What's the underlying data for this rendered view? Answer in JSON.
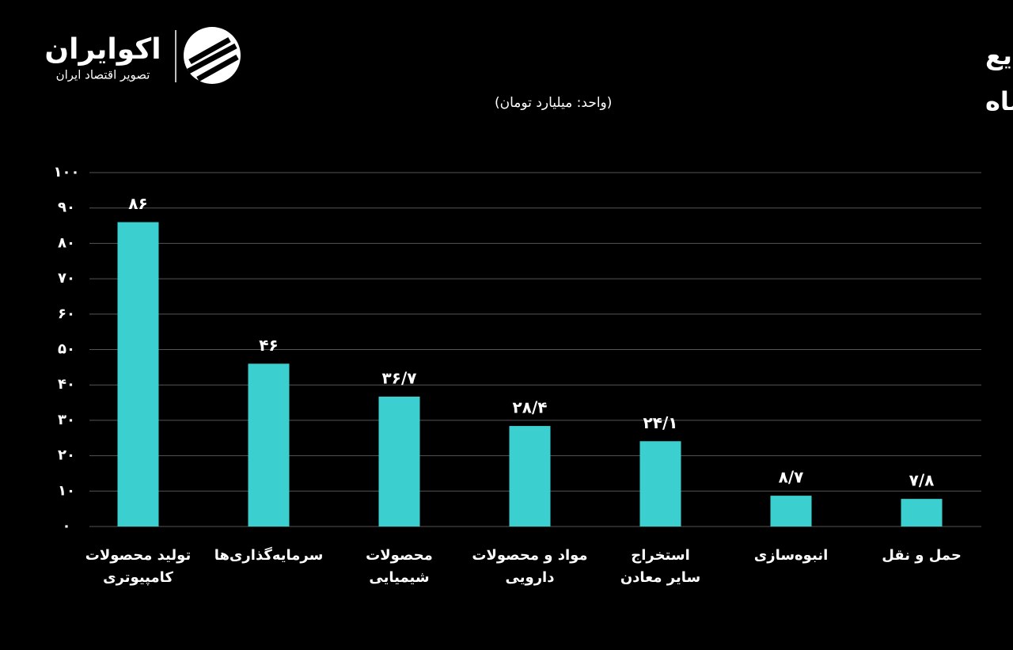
{
  "logo": {
    "name": "اکوایران",
    "tagline": "تصویر اقتصاد ایران"
  },
  "chart_data": {
    "type": "bar",
    "title": "بیشترین ورود پول حقیقی به صنایع",
    "subtitle": "در معاملات یکشنبه یازدهم تیر ماه",
    "unit": "(واحد: میلیارد تومان)",
    "categories": [
      "تولید محصولات\nکامپیوتری",
      "سرمایه‌گذاری‌ها",
      "محصولات\nشیمیایی",
      "مواد و محصولات\nدارویی",
      "استخراج\nسایر معادن",
      "انبوه‌سازی",
      "حمل و نقل"
    ],
    "values": [
      86,
      46,
      36.7,
      28.4,
      24.1,
      8.7,
      7.8
    ],
    "value_labels": [
      "۸۶",
      "۴۶",
      "۳۶/۷",
      "۲۸/۴",
      "۲۴/۱",
      "۸/۷",
      "۷/۸"
    ],
    "color": "#3ccfcf",
    "ylim": [
      0,
      100
    ],
    "yticks": [
      {
        "value": 0,
        "label": "۰"
      },
      {
        "value": 10,
        "label": "۱۰"
      },
      {
        "value": 20,
        "label": "۲۰"
      },
      {
        "value": 30,
        "label": "۳۰"
      },
      {
        "value": 40,
        "label": "۴۰"
      },
      {
        "value": 50,
        "label": "۵۰"
      },
      {
        "value": 60,
        "label": "۶۰"
      },
      {
        "value": 70,
        "label": "۷۰"
      },
      {
        "value": 80,
        "label": "۸۰"
      },
      {
        "value": 90,
        "label": "۹۰"
      },
      {
        "value": 100,
        "label": "۱۰۰"
      }
    ],
    "grid": true
  }
}
